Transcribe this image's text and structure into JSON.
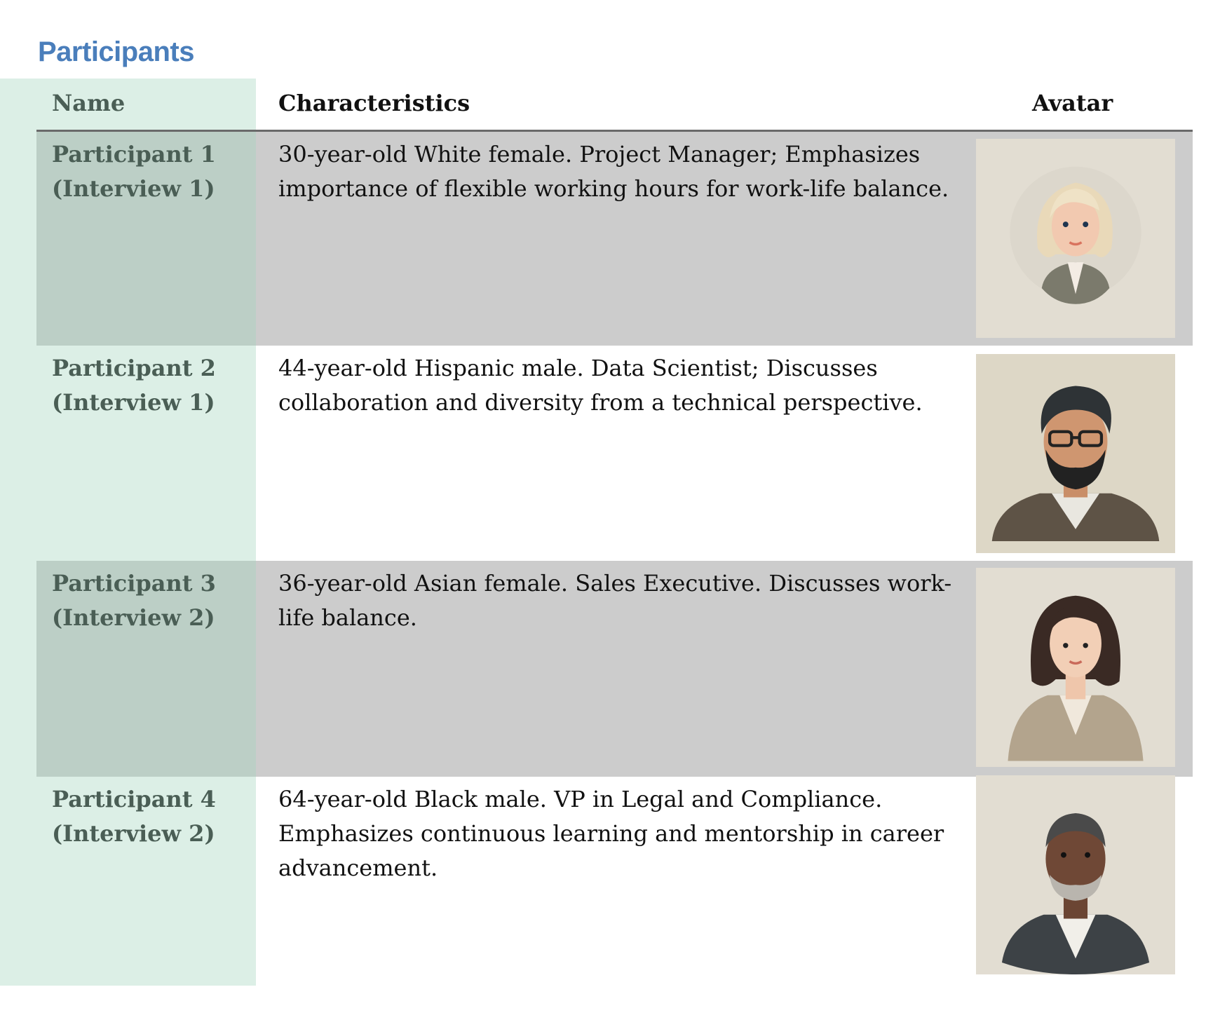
{
  "title": "Participants",
  "table": {
    "headers": {
      "name": "Name",
      "characteristics": "Characteristics",
      "avatar": "Avatar"
    },
    "rows": [
      {
        "name": "Participant 1",
        "interview": "(Interview 1)",
        "characteristics": "30-year-old White female. Project Manager; Emphasizes importance of flexible working hours for work-life balance.",
        "avatar": "blonde-woman-avatar"
      },
      {
        "name": "Participant 2",
        "interview": "(Interview 1)",
        "characteristics": "44-year-old Hispanic male. Data Scientist; Discusses collaboration and diversity from a technical perspective.",
        "avatar": "bearded-man-glasses-avatar"
      },
      {
        "name": "Participant 3",
        "interview": "(Interview 2)",
        "characteristics": "36-year-old Asian female. Sales Executive. Discusses work-life balance.",
        "avatar": "dark-haired-woman-avatar"
      },
      {
        "name": "Participant 4",
        "interview": "(Interview 2)",
        "characteristics": "64-year-old Black male. VP in Legal and Compliance. Emphasizes continuous learning and mentorship in career advancement.",
        "avatar": "older-man-avatar"
      }
    ]
  },
  "colors": {
    "title": "#4a7ebb",
    "name_column": "#dcefe6",
    "shaded_row": "#cccccc",
    "shaded_name": "#bccfc6",
    "name_text": "#4a5e55"
  }
}
